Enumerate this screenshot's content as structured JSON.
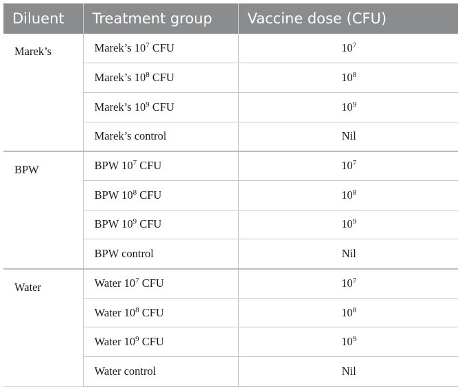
{
  "table": {
    "headers": [
      "Diluent",
      "Treatment group",
      "Vaccine dose (CFU)"
    ],
    "blocks": [
      {
        "diluent": "Marek’s",
        "rows": [
          {
            "group_base": "Marek’s 10",
            "group_exp": "7",
            "group_unit": " CFU",
            "dose_base": "10",
            "dose_exp": "7"
          },
          {
            "group_base": "Marek’s 10",
            "group_exp": "8",
            "group_unit": " CFU",
            "dose_base": "10",
            "dose_exp": "8"
          },
          {
            "group_base": "Marek’s 10",
            "group_exp": "9",
            "group_unit": " CFU",
            "dose_base": "10",
            "dose_exp": "9"
          },
          {
            "group_base": "Marek’s control",
            "group_exp": "",
            "group_unit": "",
            "dose_base": "Nil",
            "dose_exp": ""
          }
        ]
      },
      {
        "diluent": "BPW",
        "rows": [
          {
            "group_base": "BPW 10",
            "group_exp": "7",
            "group_unit": " CFU",
            "dose_base": "10",
            "dose_exp": "7"
          },
          {
            "group_base": "BPW 10",
            "group_exp": "8",
            "group_unit": " CFU",
            "dose_base": "10",
            "dose_exp": "8"
          },
          {
            "group_base": "BPW 10",
            "group_exp": "9",
            "group_unit": " CFU",
            "dose_base": "10",
            "dose_exp": "9"
          },
          {
            "group_base": "BPW control",
            "group_exp": "",
            "group_unit": "",
            "dose_base": "Nil",
            "dose_exp": ""
          }
        ]
      },
      {
        "diluent": "Water",
        "rows": [
          {
            "group_base": "Water 10",
            "group_exp": "7",
            "group_unit": " CFU",
            "dose_base": "10",
            "dose_exp": "7"
          },
          {
            "group_base": "Water 10",
            "group_exp": "8",
            "group_unit": " CFU",
            "dose_base": "10",
            "dose_exp": "8"
          },
          {
            "group_base": "Water 10",
            "group_exp": "9",
            "group_unit": " CFU",
            "dose_base": "10",
            "dose_exp": "9"
          },
          {
            "group_base": "Water control",
            "group_exp": "",
            "group_unit": "",
            "dose_base": "Nil",
            "dose_exp": ""
          }
        ]
      }
    ]
  }
}
